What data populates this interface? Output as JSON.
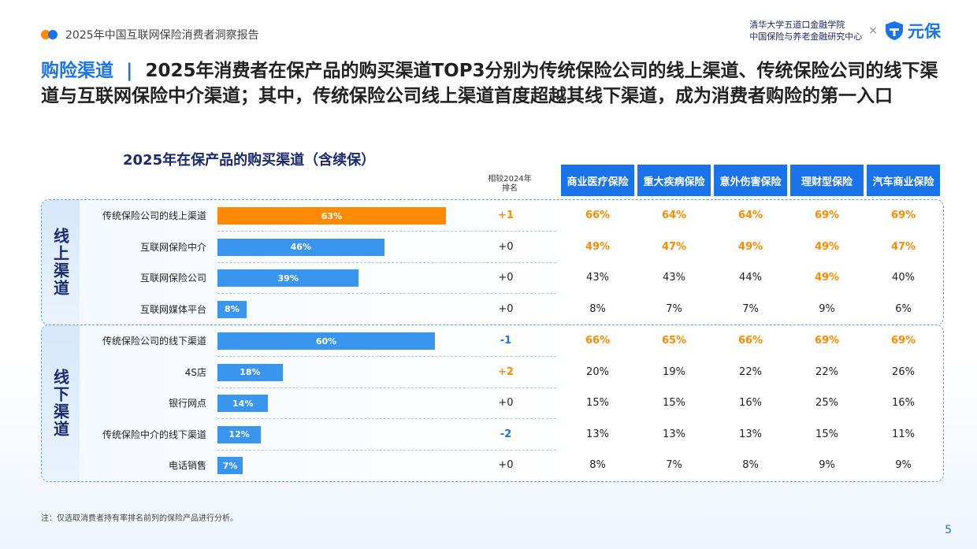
{
  "header": {
    "report_title": "2025年中国互联网保险消费者洞察报告",
    "partner_line1": "清华大学五道口金融学院",
    "partner_line2": "中国保险与养老金融研究中心",
    "times": "×",
    "brand": "元保"
  },
  "headline": {
    "keyword": "购险渠道",
    "separator": "|",
    "text": "2025年消费者在保产品的购买渠道TOP3分别为传统保险公司的线上渠道、传统保险公司的线下渠道与互联网保险中介渠道；其中，传统保险公司线上渠道首度超越其线下渠道，成为消费者购险的第一入口"
  },
  "chart_data": {
    "type": "bar",
    "title": "2025年在保产品的购买渠道（含续保）",
    "rank_header": "相较2024年排名",
    "product_columns": [
      "商业医疗保险",
      "重大疾病保险",
      "意外伤害保险",
      "理财型保险",
      "汽车商业保险"
    ],
    "groups": [
      {
        "label": "线上渠道",
        "rows": [
          {
            "channel": "传统保险公司的线上渠道",
            "value": 63,
            "label": "63%",
            "rank_change": "+1",
            "trend": "up",
            "highlight_bar": true,
            "products": [
              "66%",
              "64%",
              "64%",
              "69%",
              "69%"
            ],
            "product_hi": [
              true,
              true,
              true,
              true,
              true
            ]
          },
          {
            "channel": "互联网保险中介",
            "value": 46,
            "label": "46%",
            "rank_change": "+0",
            "trend": "flat",
            "highlight_bar": false,
            "products": [
              "49%",
              "47%",
              "49%",
              "49%",
              "47%"
            ],
            "product_hi": [
              true,
              true,
              true,
              true,
              true
            ]
          },
          {
            "channel": "互联网保险公司",
            "value": 39,
            "label": "39%",
            "rank_change": "+0",
            "trend": "flat",
            "highlight_bar": false,
            "products": [
              "43%",
              "43%",
              "44%",
              "49%",
              "40%"
            ],
            "product_hi": [
              false,
              false,
              false,
              true,
              false
            ]
          },
          {
            "channel": "互联网媒体平台",
            "value": 8,
            "label": "8%",
            "rank_change": "+0",
            "trend": "flat",
            "highlight_bar": false,
            "products": [
              "8%",
              "7%",
              "7%",
              "9%",
              "6%"
            ],
            "product_hi": [
              false,
              false,
              false,
              false,
              false
            ]
          }
        ]
      },
      {
        "label": "线下渠道",
        "rows": [
          {
            "channel": "传统保险公司的线下渠道",
            "value": 60,
            "label": "60%",
            "rank_change": "-1",
            "trend": "down",
            "highlight_bar": false,
            "products": [
              "66%",
              "65%",
              "66%",
              "69%",
              "69%"
            ],
            "product_hi": [
              true,
              true,
              true,
              true,
              true
            ]
          },
          {
            "channel": "4S店",
            "value": 18,
            "label": "18%",
            "rank_change": "+2",
            "trend": "up",
            "highlight_bar": false,
            "products": [
              "20%",
              "19%",
              "22%",
              "22%",
              "26%"
            ],
            "product_hi": [
              false,
              false,
              false,
              false,
              false
            ]
          },
          {
            "channel": "银行网点",
            "value": 14,
            "label": "14%",
            "rank_change": "+0",
            "trend": "flat",
            "highlight_bar": false,
            "products": [
              "15%",
              "15%",
              "16%",
              "25%",
              "16%"
            ],
            "product_hi": [
              false,
              false,
              false,
              false,
              false
            ]
          },
          {
            "channel": "传统保险中介的线下渠道",
            "value": 12,
            "label": "12%",
            "rank_change": "-2",
            "trend": "down",
            "highlight_bar": false,
            "products": [
              "13%",
              "13%",
              "13%",
              "15%",
              "11%"
            ],
            "product_hi": [
              false,
              false,
              false,
              false,
              false
            ]
          },
          {
            "channel": "电话销售",
            "value": 7,
            "label": "7%",
            "rank_change": "+0",
            "trend": "flat",
            "highlight_bar": false,
            "products": [
              "8%",
              "7%",
              "8%",
              "9%",
              "9%"
            ],
            "product_hi": [
              false,
              false,
              false,
              false,
              false
            ]
          }
        ]
      }
    ]
  },
  "colors": {
    "accent_blue": "#1a73e8",
    "bar_blue": "#3a95ee",
    "highlight_orange": "#ff8a00"
  },
  "footer": {
    "note": "注：仅选取消费者持有率排名前列的保险产品进行分析。",
    "page": "5"
  }
}
